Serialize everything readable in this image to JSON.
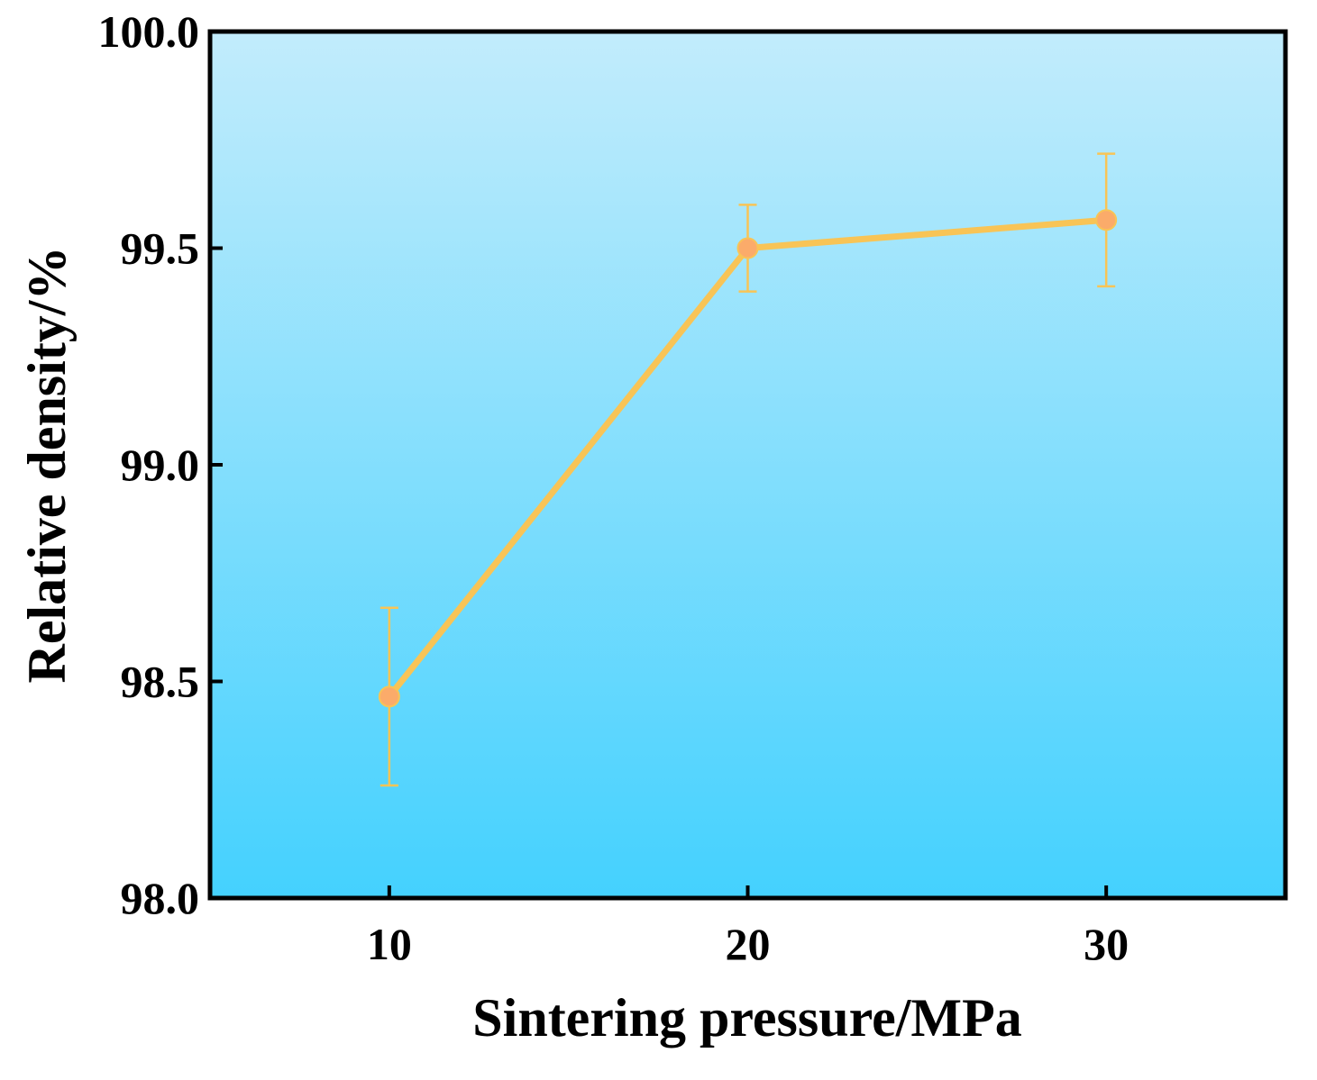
{
  "chart_data": {
    "type": "line",
    "title": "",
    "xlabel": "Sintering pressure/MPa",
    "ylabel": "Relative density/%",
    "xlim": [
      5,
      35
    ],
    "ylim": [
      98.0,
      100.0
    ],
    "x_ticks": [
      10,
      20,
      30
    ],
    "x_tick_labels": [
      "10",
      "20",
      "30"
    ],
    "y_ticks": [
      98.0,
      98.5,
      99.0,
      99.5,
      100.0
    ],
    "y_tick_labels": [
      "98.0",
      "98.5",
      "99.0",
      "99.5",
      "100.0"
    ],
    "grid": false,
    "background_gradient": [
      "#c2ecfc",
      "#44d1fe"
    ],
    "series": [
      {
        "name": "Relative density",
        "color": "#f8c456",
        "marker_color": "#fbab6a",
        "x": [
          10,
          20,
          30
        ],
        "values": [
          98.465,
          99.5,
          99.565
        ],
        "error": [
          0.205,
          0.1,
          0.153
        ]
      }
    ]
  }
}
